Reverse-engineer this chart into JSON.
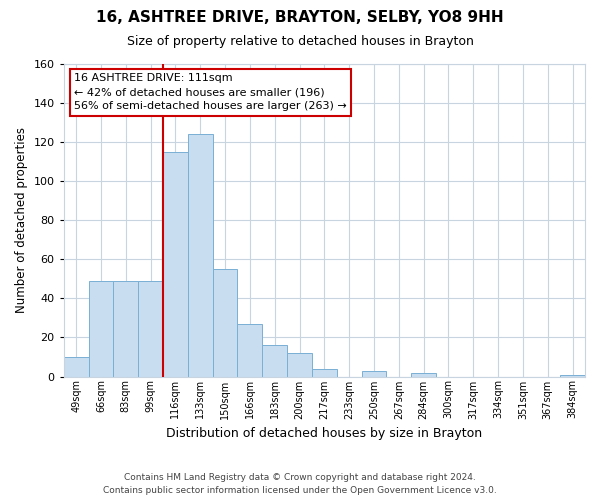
{
  "title": "16, ASHTREE DRIVE, BRAYTON, SELBY, YO8 9HH",
  "subtitle": "Size of property relative to detached houses in Brayton",
  "xlabel": "Distribution of detached houses by size in Brayton",
  "ylabel": "Number of detached properties",
  "bin_labels": [
    "49sqm",
    "66sqm",
    "83sqm",
    "99sqm",
    "116sqm",
    "133sqm",
    "150sqm",
    "166sqm",
    "183sqm",
    "200sqm",
    "217sqm",
    "233sqm",
    "250sqm",
    "267sqm",
    "284sqm",
    "300sqm",
    "317sqm",
    "334sqm",
    "351sqm",
    "367sqm",
    "384sqm"
  ],
  "bar_values": [
    10,
    49,
    49,
    49,
    115,
    124,
    55,
    27,
    16,
    12,
    4,
    0,
    3,
    0,
    2,
    0,
    0,
    0,
    0,
    0,
    1
  ],
  "bar_color": "#c9ddf0",
  "bar_edge_color": "#7aafd4",
  "vline_color": "#cc0000",
  "annotation_title": "16 ASHTREE DRIVE: 111sqm",
  "annotation_line1": "← 42% of detached houses are smaller (196)",
  "annotation_line2": "56% of semi-detached houses are larger (263) →",
  "annotation_box_color": "#ffffff",
  "annotation_box_edge_color": "#cc0000",
  "ylim": [
    0,
    160
  ],
  "yticks": [
    0,
    20,
    40,
    60,
    80,
    100,
    120,
    140,
    160
  ],
  "footer_line1": "Contains HM Land Registry data © Crown copyright and database right 2024.",
  "footer_line2": "Contains public sector information licensed under the Open Government Licence v3.0.",
  "bg_color": "#ffffff",
  "grid_color": "#c8d4e0"
}
